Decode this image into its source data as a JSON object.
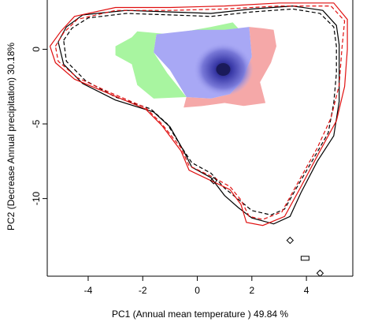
{
  "chart_data": {
    "type": "contour-density",
    "xlabel": "PC1 (Annual mean temperature ) 49.84 %",
    "ylabel": "PC2 (Decrease Annual precipitation) 30.18%",
    "xlim": [
      -5.5,
      5.7
    ],
    "ylim": [
      -15.2,
      3.3
    ],
    "x_ticks": [
      -4,
      -2,
      0,
      2,
      4
    ],
    "y_ticks": [
      0,
      -5,
      -10
    ],
    "grid": false,
    "colors": {
      "overlap": "#a8a8f5",
      "species_a_only": "#a8f5a0",
      "species_b_only": "#f5a8a8",
      "density_peak": "#1a1a5a",
      "species_a_contour": "#000000",
      "species_b_contour": "#e01010"
    },
    "contours": [
      {
        "color": "#000000",
        "dashed": false,
        "points": [
          [
            -5.1,
            0.5
          ],
          [
            -4.8,
            1.5
          ],
          [
            -4.2,
            2.3
          ],
          [
            -2.6,
            2.6
          ],
          [
            -1.0,
            2.5
          ],
          [
            0.5,
            2.4
          ],
          [
            2.0,
            2.7
          ],
          [
            3.5,
            2.9
          ],
          [
            4.6,
            2.6
          ],
          [
            5.1,
            1.6
          ],
          [
            5.2,
            0.3
          ],
          [
            5.2,
            -1.5
          ],
          [
            5.2,
            -3.5
          ],
          [
            5.0,
            -5.8
          ],
          [
            4.4,
            -7.5
          ],
          [
            3.8,
            -9.6
          ],
          [
            3.4,
            -11.2
          ],
          [
            2.8,
            -11.7
          ],
          [
            2.0,
            -11.3
          ],
          [
            1.5,
            -10.6
          ],
          [
            1.0,
            -9.8
          ],
          [
            0.5,
            -8.6
          ],
          [
            -0.2,
            -7.9
          ],
          [
            -0.5,
            -6.8
          ],
          [
            -1.0,
            -5.2
          ],
          [
            -1.6,
            -4.2
          ],
          [
            -3.0,
            -3.4
          ],
          [
            -4.2,
            -2.3
          ],
          [
            -4.9,
            -1.0
          ],
          [
            -5.1,
            0.5
          ]
        ]
      },
      {
        "color": "#000000",
        "dashed": true,
        "points": [
          [
            -4.9,
            0.6
          ],
          [
            -4.6,
            1.4
          ],
          [
            -4.0,
            2.1
          ],
          [
            -2.6,
            2.4
          ],
          [
            -1.0,
            2.3
          ],
          [
            0.5,
            2.2
          ],
          [
            2.0,
            2.5
          ],
          [
            3.5,
            2.7
          ],
          [
            4.5,
            2.4
          ],
          [
            5.0,
            1.5
          ],
          [
            5.1,
            0.2
          ],
          [
            5.1,
            -1.6
          ],
          [
            5.0,
            -3.6
          ],
          [
            4.8,
            -5.6
          ],
          [
            4.3,
            -7.2
          ],
          [
            3.6,
            -9.4
          ],
          [
            3.2,
            -10.7
          ],
          [
            2.7,
            -11.1
          ],
          [
            2.0,
            -10.8
          ],
          [
            1.6,
            -10.2
          ],
          [
            1.0,
            -9.3
          ],
          [
            0.5,
            -8.3
          ],
          [
            -0.2,
            -7.6
          ],
          [
            -0.6,
            -6.5
          ],
          [
            -1.1,
            -5.0
          ],
          [
            -1.7,
            -4.0
          ],
          [
            -3.0,
            -3.2
          ],
          [
            -4.1,
            -2.1
          ],
          [
            -4.8,
            -0.8
          ],
          [
            -4.9,
            0.6
          ]
        ]
      },
      {
        "color": "#e01010",
        "dashed": false,
        "points": [
          [
            -5.4,
            0.2
          ],
          [
            -5.0,
            1.2
          ],
          [
            -4.5,
            2.2
          ],
          [
            -3.0,
            2.8
          ],
          [
            -1.0,
            2.8
          ],
          [
            1.0,
            2.9
          ],
          [
            3.0,
            3.1
          ],
          [
            5.0,
            3.1
          ],
          [
            5.5,
            2.0
          ],
          [
            5.5,
            0.0
          ],
          [
            5.4,
            -2.5
          ],
          [
            5.1,
            -4.8
          ],
          [
            4.5,
            -6.8
          ],
          [
            3.8,
            -9.2
          ],
          [
            3.2,
            -11.2
          ],
          [
            2.4,
            -11.8
          ],
          [
            1.8,
            -11.6
          ],
          [
            1.6,
            -10.4
          ],
          [
            1.2,
            -9.4
          ],
          [
            0.5,
            -8.8
          ],
          [
            -0.3,
            -8.1
          ],
          [
            -0.6,
            -6.8
          ],
          [
            -1.3,
            -5.1
          ],
          [
            -1.9,
            -4.0
          ],
          [
            -3.2,
            -3.0
          ],
          [
            -4.5,
            -2.0
          ],
          [
            -5.2,
            -0.9
          ],
          [
            -5.4,
            0.2
          ]
        ]
      },
      {
        "color": "#e01010",
        "dashed": true,
        "points": [
          [
            -5.2,
            0.2
          ],
          [
            -4.9,
            1.1
          ],
          [
            -4.4,
            2.0
          ],
          [
            -3.0,
            2.6
          ],
          [
            -1.0,
            2.6
          ],
          [
            1.0,
            2.7
          ],
          [
            3.0,
            2.9
          ],
          [
            4.9,
            2.9
          ],
          [
            5.4,
            1.9
          ],
          [
            5.3,
            0.0
          ],
          [
            5.2,
            -2.4
          ],
          [
            4.9,
            -4.6
          ],
          [
            4.4,
            -6.6
          ],
          [
            3.7,
            -8.9
          ],
          [
            3.1,
            -10.9
          ],
          [
            2.4,
            -11.4
          ],
          [
            1.9,
            -11.2
          ],
          [
            1.6,
            -10.1
          ],
          [
            1.2,
            -9.2
          ],
          [
            0.5,
            -8.5
          ],
          [
            -0.3,
            -7.8
          ],
          [
            -0.6,
            -6.6
          ],
          [
            -1.3,
            -5.0
          ],
          [
            -1.9,
            -3.9
          ],
          [
            -3.2,
            -2.9
          ],
          [
            -4.4,
            -1.9
          ],
          [
            -5.1,
            -0.8
          ],
          [
            -5.2,
            0.2
          ]
        ]
      }
    ],
    "isolated_marks": [
      {
        "shape": "diamond",
        "x": 3.4,
        "y": -12.8,
        "color": "#000000"
      },
      {
        "shape": "rect",
        "x": 3.95,
        "y": -14.0,
        "color": "#000000"
      },
      {
        "shape": "diamond",
        "x": 4.5,
        "y": -15.0,
        "color": "#000000"
      },
      {
        "shape": "diamond",
        "x": 0.6,
        "y": -8.8,
        "color": "#000000"
      }
    ],
    "niche_regions": {
      "overlap": [
        [
          -1.5,
          1.0
        ],
        [
          0.0,
          1.3
        ],
        [
          1.0,
          1.3
        ],
        [
          1.9,
          1.5
        ],
        [
          2.0,
          -0.5
        ],
        [
          1.6,
          -2.2
        ],
        [
          1.2,
          -3.0
        ],
        [
          0.5,
          -3.3
        ],
        [
          -0.4,
          -3.2
        ],
        [
          -1.0,
          -1.4
        ],
        [
          -1.6,
          -0.2
        ]
      ],
      "species_a_only": [
        [
          -3.0,
          0.2
        ],
        [
          -2.4,
          0.8
        ],
        [
          -2.2,
          1.2
        ],
        [
          -1.0,
          1.0
        ],
        [
          0.5,
          1.5
        ],
        [
          1.3,
          1.8
        ],
        [
          1.5,
          1.4
        ],
        [
          0.3,
          1.1
        ],
        [
          -1.5,
          1.0
        ],
        [
          -1.6,
          -0.2
        ],
        [
          -1.1,
          -1.6
        ],
        [
          -0.4,
          -3.2
        ],
        [
          -1.6,
          -3.3
        ],
        [
          -2.2,
          -2.4
        ],
        [
          -2.4,
          -1.0
        ],
        [
          -3.0,
          -0.4
        ]
      ],
      "species_b_only": [
        [
          1.9,
          1.5
        ],
        [
          2.4,
          1.4
        ],
        [
          2.8,
          1.3
        ],
        [
          2.9,
          0.2
        ],
        [
          2.7,
          -0.9
        ],
        [
          2.3,
          -2.2
        ],
        [
          2.5,
          -3.6
        ],
        [
          1.7,
          -3.8
        ],
        [
          1.0,
          -3.6
        ],
        [
          0.2,
          -3.8
        ],
        [
          -0.5,
          -3.9
        ],
        [
          -0.4,
          -3.2
        ],
        [
          0.5,
          -3.3
        ],
        [
          1.2,
          -3.0
        ],
        [
          1.6,
          -2.2
        ],
        [
          2.0,
          -0.5
        ]
      ]
    },
    "density_peak_xy": [
      0.95,
      -1.35
    ]
  }
}
